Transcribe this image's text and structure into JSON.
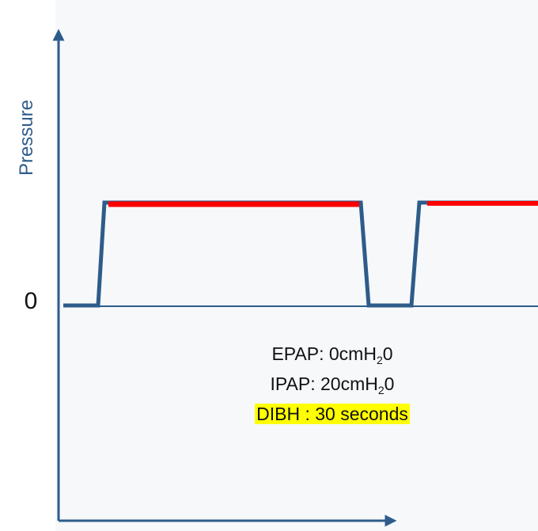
{
  "diagram": {
    "y_axis_label": "Pressure",
    "zero_label": "0",
    "settings": {
      "epap": {
        "prefix": "EPAP: 0cmH",
        "sub": "2",
        "suffix": "0"
      },
      "ipap": {
        "prefix": "IPAP: 20cmH",
        "sub": "2",
        "suffix": "0"
      },
      "dibh": "DIBH : 30 seconds"
    }
  },
  "colors": {
    "waveform": "#2e5c8a",
    "ipap_level": "#ff0000",
    "axis": "#2e5c8a",
    "highlight": "#ffff00"
  }
}
